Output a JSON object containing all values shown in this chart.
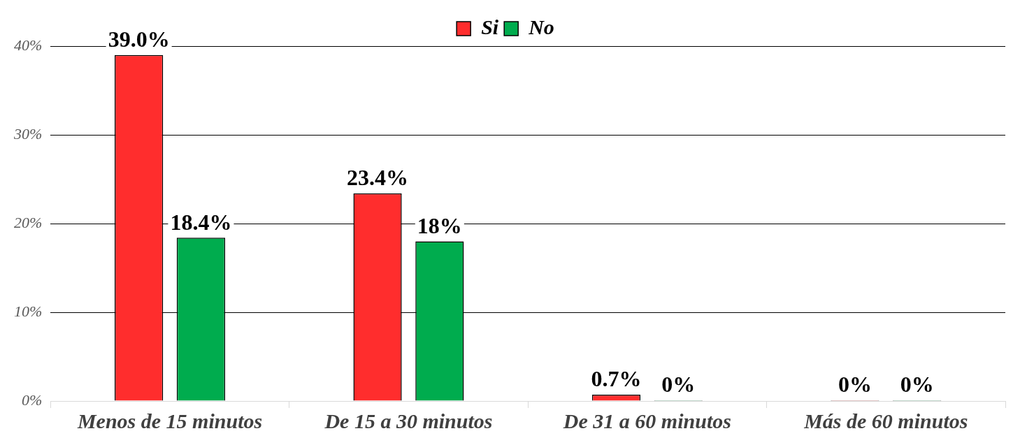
{
  "chart_data": {
    "type": "bar",
    "categories": [
      "Menos de 15 minutos",
      "De 15 a 30 minutos",
      "De 31 a 60 minutos",
      "Más de 60 minutos"
    ],
    "series": [
      {
        "name": "Si",
        "color": "#ff2d2d",
        "values": [
          39.0,
          23.4,
          0.7,
          0
        ],
        "value_labels": [
          "39.0%",
          "23.4%",
          "0.7%",
          "0%"
        ]
      },
      {
        "name": "No",
        "color": "#00ac4e",
        "values": [
          18.4,
          18,
          0,
          0
        ],
        "value_labels": [
          "18.4%",
          "18%",
          "0%",
          "0%"
        ]
      }
    ],
    "ylim": [
      0,
      40
    ],
    "yticks": [
      {
        "value": 0,
        "label": "0%"
      },
      {
        "value": 10,
        "label": "10%"
      },
      {
        "value": 20,
        "label": "20%"
      },
      {
        "value": 30,
        "label": "30%"
      },
      {
        "value": 40,
        "label": "40%"
      }
    ],
    "grid": "y",
    "legend": "top"
  }
}
